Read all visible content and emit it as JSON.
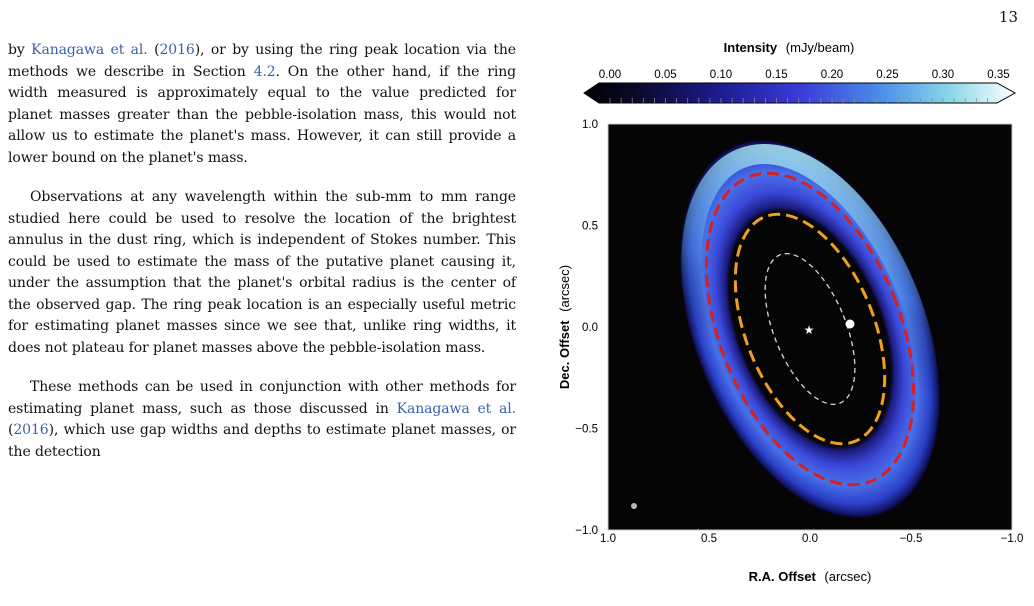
{
  "page_number": "13",
  "paragraphs": [
    [
      {
        "t": "by "
      },
      {
        "t": "Kanagawa et al.",
        "c": 1
      },
      {
        "t": " ("
      },
      {
        "t": "2016",
        "c": 1
      },
      {
        "t": "), or by using the ring peak location via the methods we describe in Section "
      },
      {
        "t": "4.2",
        "c": 1
      },
      {
        "t": ". On the other hand, if the ring width measured is approximately equal to the value predicted for planet masses greater than the pebble-isolation mass, this would not allow us to estimate the planet's mass. However, it can still provide a lower bound on the planet's mass."
      }
    ],
    [
      {
        "t": "Observations at any wavelength within the sub-mm to mm range studied here could be used to resolve the location of the brightest annulus in the dust ring, which is independent of Stokes number. This could be used to estimate the mass of the putative planet causing it, under the assumption that the planet's orbital radius is the center of the observed gap. The ring peak location is an especially useful metric for estimating planet masses since we see that, unlike ring widths, it does not plateau for planet masses above the pebble-isolation mass."
      }
    ],
    [
      {
        "t": "These methods can be used in conjunction with other methods for estimating planet mass, such as those discussed in "
      },
      {
        "t": "Kanagawa et al.",
        "c": 1
      },
      {
        "t": " ("
      },
      {
        "t": "2016",
        "c": 1
      },
      {
        "t": "), which use gap widths and depths to estimate planet masses, or the detection"
      }
    ]
  ],
  "figure": {
    "colorbar": {
      "title_bold": "Intensity",
      "title_unit": "(mJy/beam)",
      "ticks": [
        "0.00",
        "0.05",
        "0.10",
        "0.15",
        "0.20",
        "0.25",
        "0.30",
        "0.35"
      ]
    },
    "axes": {
      "xlabel_bold": "R.A. Offset",
      "xlabel_unit": "(arcsec)",
      "ylabel_bold": "Dec. Offset",
      "ylabel_unit": "(arcsec)",
      "xlim": [
        1.0,
        -1.0
      ],
      "ylim": [
        -1.0,
        1.0
      ],
      "xticks": [
        "1.0",
        "0.5",
        "0.0",
        "−0.5",
        "−1.0"
      ],
      "yticks": [
        "1.0",
        "0.5",
        "0.0",
        "−0.5",
        "−1.0"
      ]
    },
    "colors": {
      "outer_ring": "#d42020",
      "inner_ring": "#f0a020",
      "orbit": "#d8d8d8"
    }
  }
}
